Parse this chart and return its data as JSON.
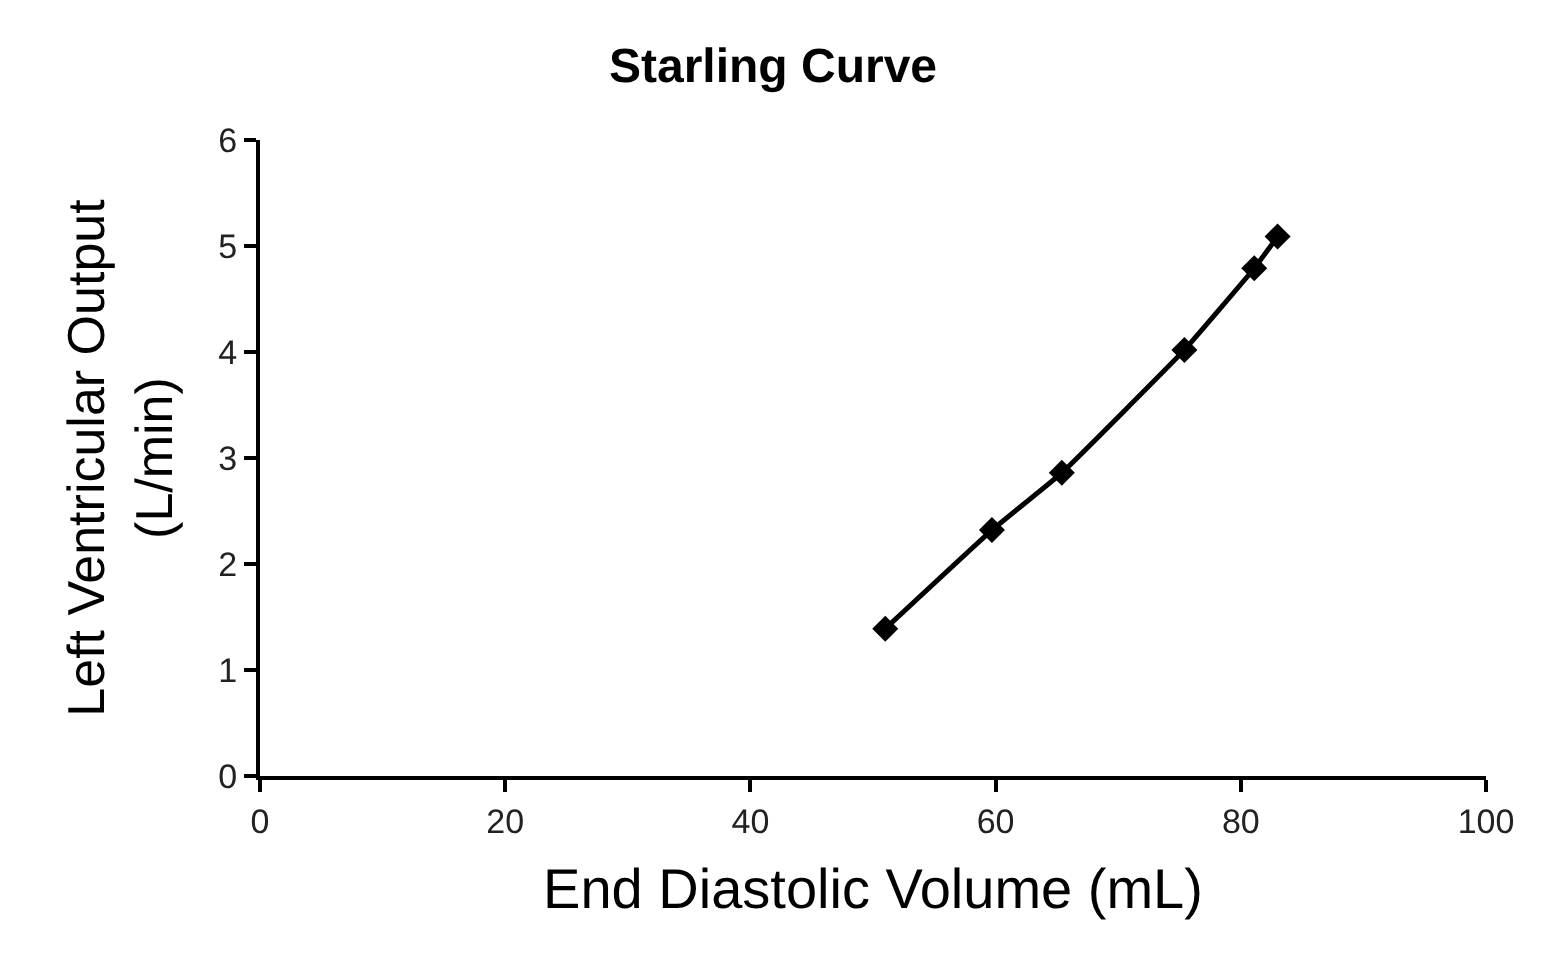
{
  "chart_data": {
    "type": "line",
    "title": "Starling Curve",
    "xlabel": "End Diastolic Volume (mL)",
    "ylabel": "Left Ventricular Output\n(L/min)",
    "x": [
      51.0,
      59.7,
      65.4,
      75.4,
      81.1,
      83.0
    ],
    "series": [
      {
        "color": "#000000",
        "values": [
          1.39,
          2.32,
          2.86,
          4.02,
          4.79,
          5.09
        ]
      }
    ],
    "xlim": [
      0,
      100
    ],
    "xticks": [
      0,
      20,
      40,
      60,
      80,
      100
    ],
    "ylim": [
      0,
      6
    ],
    "yticks": [
      0,
      1,
      2,
      3,
      4,
      5,
      6
    ],
    "marker": "diamond",
    "line_style": "solid"
  }
}
